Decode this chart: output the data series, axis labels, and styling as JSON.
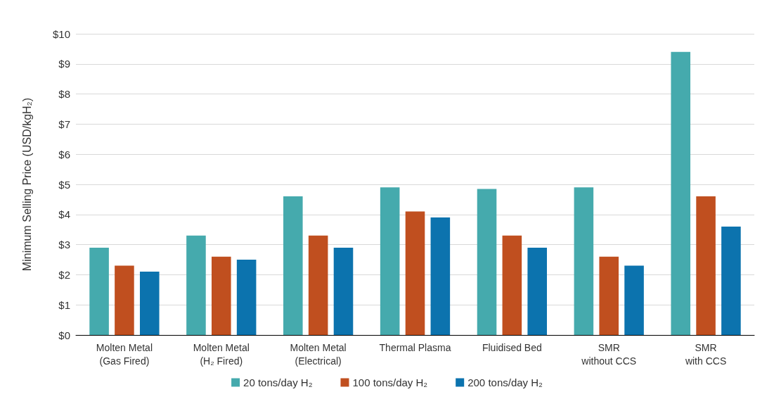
{
  "chart_data": {
    "type": "bar",
    "ylabel": "Minimum Selling Price (USD/kgH₂)",
    "categories": [
      "Molten Metal\n(Gas Fired)",
      "Molten Metal\n(H₂ Fired)",
      "Molten Metal\n(Electrical)",
      "Thermal Plasma",
      "Fluidised Bed",
      "SMR\nwithout CCS",
      "SMR\nwith CCS"
    ],
    "series": [
      {
        "name": "20 tons/day H₂",
        "color": "#45aaad",
        "values": [
          2.9,
          3.3,
          4.6,
          4.9,
          4.85,
          4.9,
          9.4
        ]
      },
      {
        "name": "100 tons/day H₂",
        "color": "#c04f1f",
        "values": [
          2.3,
          2.6,
          3.3,
          4.1,
          3.3,
          2.6,
          4.6
        ]
      },
      {
        "name": "200 tons/day H₂",
        "color": "#0c73ae",
        "values": [
          2.1,
          2.5,
          2.9,
          3.9,
          2.9,
          2.3,
          3.6
        ]
      }
    ],
    "ylim": [
      0,
      10
    ],
    "yticks": [
      {
        "value": 0,
        "label": "$0"
      },
      {
        "value": 1,
        "label": "$1"
      },
      {
        "value": 2,
        "label": "$2"
      },
      {
        "value": 3,
        "label": "$3"
      },
      {
        "value": 4,
        "label": "$4"
      },
      {
        "value": 5,
        "label": "$5"
      },
      {
        "value": 6,
        "label": "$6"
      },
      {
        "value": 7,
        "label": "$7"
      },
      {
        "value": 8,
        "label": "$8"
      },
      {
        "value": 9,
        "label": "$9"
      },
      {
        "value": 10,
        "label": "$10"
      }
    ],
    "grid": "y",
    "legend": "bottom"
  }
}
